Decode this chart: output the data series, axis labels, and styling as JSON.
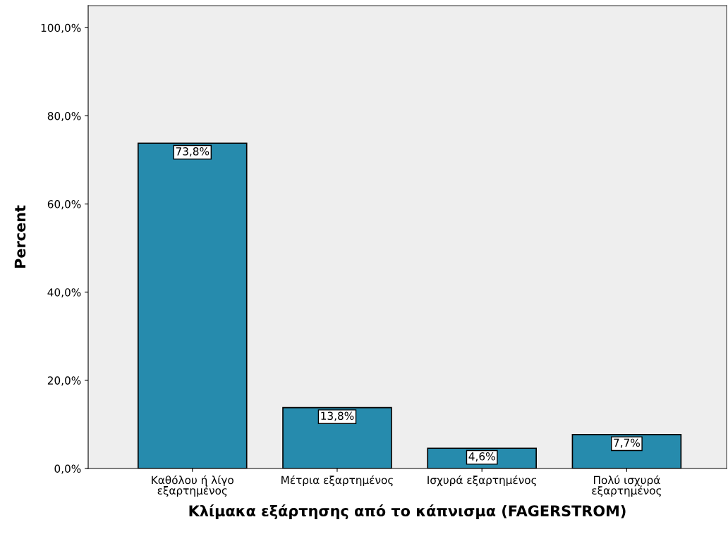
{
  "chart_data": {
    "type": "bar",
    "xlabel": "Κλίμακα εξάρτησης από το κάπνισμα (FAGERSTROM)",
    "ylabel": "Percent",
    "categories": [
      "Καθόλου ή λίγο\nεξαρτημένος",
      "Μέτρια εξαρτημένος",
      "Ισχυρά εξαρτημένος",
      "Πολύ ισχυρά\nεξαρτημένος"
    ],
    "values": [
      73.8,
      13.8,
      4.6,
      7.7
    ],
    "value_labels": [
      "73,8%",
      "13,8%",
      "4,6%",
      "7,7%"
    ],
    "color": "#268bad",
    "ylim": [
      0,
      105
    ],
    "yticks": [
      {
        "value": 0,
        "label": "0,0%"
      },
      {
        "value": 20,
        "label": "20,0%"
      },
      {
        "value": 40,
        "label": "40,0%"
      },
      {
        "value": 60,
        "label": "60,0%"
      },
      {
        "value": 80,
        "label": "80,0%"
      },
      {
        "value": 100,
        "label": "100,0%"
      }
    ],
    "grid": false
  }
}
